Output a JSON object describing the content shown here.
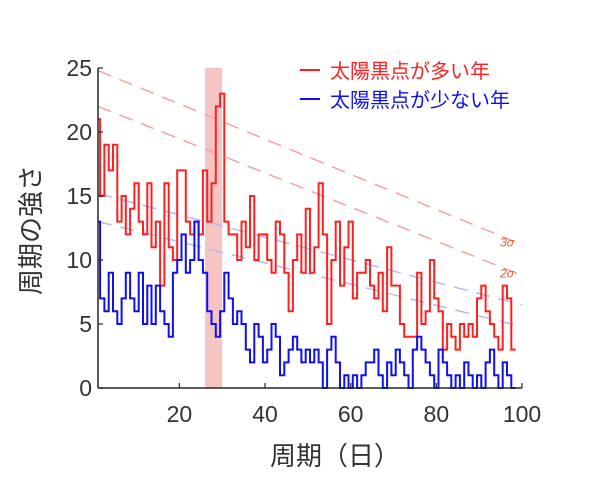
{
  "chart_data": {
    "type": "line",
    "xlabel": "周期（日）",
    "ylabel": "周期の強さ",
    "xlim": [
      1,
      100
    ],
    "ylim": [
      0,
      25
    ],
    "x_ticks": [
      20,
      40,
      60,
      80,
      100
    ],
    "y_ticks": [
      0,
      5,
      10,
      15,
      20,
      25
    ],
    "grid": false,
    "legend_position": "top-right",
    "highlight_band": {
      "x_start": 26,
      "x_end": 30,
      "color": "#f7c4c4"
    },
    "series": [
      {
        "name": "太陽黒点が多い年",
        "color": "#ff2020",
        "x": [
          1,
          2,
          3,
          4,
          5,
          6,
          7,
          8,
          9,
          10,
          11,
          12,
          13,
          14,
          15,
          16,
          17,
          18,
          19,
          20,
          21,
          22,
          23,
          24,
          25,
          26,
          27,
          28,
          29,
          30,
          31,
          32,
          33,
          34,
          35,
          36,
          37,
          38,
          39,
          40,
          41,
          42,
          43,
          44,
          45,
          46,
          47,
          48,
          49,
          50,
          51,
          52,
          53,
          54,
          55,
          56,
          57,
          58,
          59,
          60,
          61,
          62,
          63,
          64,
          65,
          66,
          67,
          68,
          69,
          70,
          71,
          72,
          73,
          74,
          75,
          76,
          77,
          78,
          79,
          80,
          81,
          82,
          83,
          84,
          85,
          86,
          87,
          88,
          89,
          90,
          91,
          92,
          93,
          94,
          95,
          96,
          97,
          98
        ],
        "values": [
          21,
          15,
          19,
          17,
          19,
          13,
          15,
          12,
          14,
          16,
          13,
          12,
          16,
          11,
          13,
          8,
          16,
          11,
          10,
          17,
          17,
          13,
          12,
          13,
          12,
          17,
          13,
          16,
          22,
          23,
          13,
          12,
          12,
          10,
          13,
          11,
          15,
          10,
          12,
          12,
          10,
          9,
          13,
          12,
          9,
          6,
          10,
          12,
          9,
          14,
          9,
          11,
          16,
          12,
          5,
          10,
          13,
          8,
          11,
          13,
          7,
          9,
          9,
          10,
          8,
          7,
          9,
          6,
          11,
          8,
          8,
          5,
          4,
          4,
          4,
          9,
          5,
          6,
          10,
          7,
          6,
          3,
          5,
          4,
          3,
          5,
          4,
          5,
          4,
          7,
          8,
          6,
          5,
          4,
          3,
          8,
          7,
          3
        ]
      },
      {
        "name": "太陽黒点が少ない年",
        "color": "#1010ee",
        "x": [
          1,
          2,
          3,
          4,
          5,
          6,
          7,
          8,
          9,
          10,
          11,
          12,
          13,
          14,
          15,
          16,
          17,
          18,
          19,
          20,
          21,
          22,
          23,
          24,
          25,
          26,
          27,
          28,
          29,
          30,
          31,
          32,
          33,
          34,
          35,
          36,
          37,
          38,
          39,
          40,
          41,
          42,
          43,
          44,
          45,
          46,
          47,
          48,
          49,
          50,
          51,
          52,
          53,
          54,
          55,
          56,
          57,
          58,
          59,
          60,
          61,
          62,
          63,
          64,
          65,
          66,
          67,
          68,
          69,
          70,
          71,
          72,
          73,
          74,
          75,
          76,
          77,
          78,
          79,
          80,
          81,
          82,
          83,
          84,
          85,
          86,
          87,
          88,
          89,
          90,
          91,
          92,
          93,
          94,
          95,
          96,
          97,
          98
        ],
        "values": [
          13,
          7,
          6,
          9,
          6,
          5,
          7,
          9,
          7,
          6,
          9,
          5,
          8,
          5,
          8,
          6,
          5,
          4,
          9,
          10,
          12,
          9,
          10,
          13,
          10,
          9,
          6,
          5,
          4,
          6,
          9,
          7,
          5,
          6,
          5,
          3,
          2,
          5,
          4,
          2,
          3,
          5,
          4,
          1,
          2,
          3,
          4,
          3,
          2,
          3,
          2,
          3,
          2,
          0,
          3,
          4,
          2,
          0,
          1,
          0,
          1,
          0,
          1,
          2,
          2,
          3,
          1,
          0,
          2,
          1,
          3,
          2,
          1,
          0,
          3,
          4,
          3,
          2,
          1,
          0,
          3,
          2,
          1,
          0,
          1,
          0,
          2,
          1,
          0,
          1,
          0,
          2,
          3,
          1,
          0,
          2,
          1,
          0
        ]
      }
    ],
    "reference_lines": [
      {
        "label": "3σ",
        "color": "#f4a3a3",
        "y_at_xmin": 24.8,
        "y_at_xmax": 11.2
      },
      {
        "label": "2σ",
        "color": "#f4a3a3",
        "y_at_xmin": 22.0,
        "y_at_xmax": 8.8
      },
      {
        "label": "",
        "color": "#b8b8f0",
        "y_at_xmin": 15.2,
        "y_at_xmax": 6.5
      },
      {
        "label": "",
        "color": "#b8b8f0",
        "y_at_xmin": 13.0,
        "y_at_xmax": 4.8
      }
    ]
  }
}
